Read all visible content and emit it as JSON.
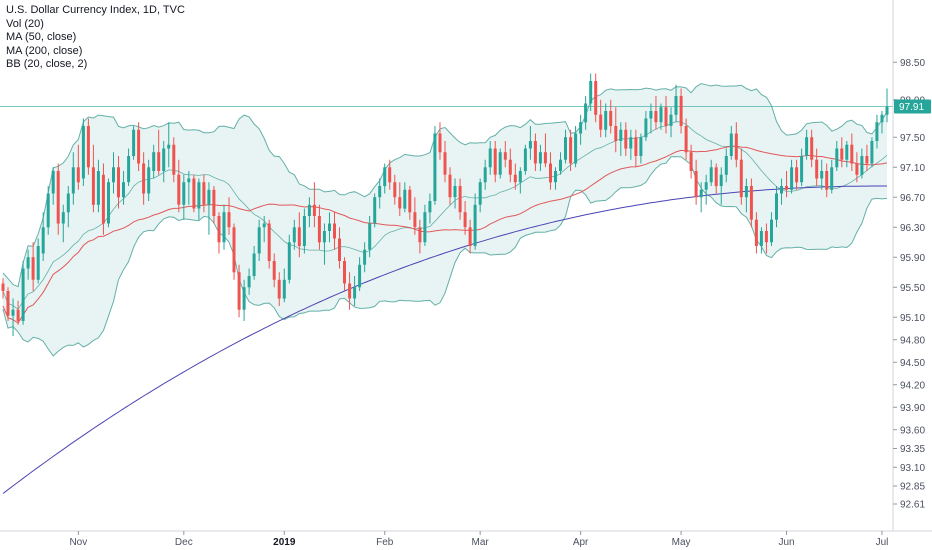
{
  "legend": {
    "title": "U.S. Dollar Currency Index, 1D, TVC",
    "vol": "Vol (20)",
    "ma50": "MA (50, close)",
    "ma200": "MA (200, close)",
    "bb": "BB (20, close, 2)"
  },
  "colors": {
    "up": "#26a69a",
    "down": "#ef5350",
    "bb": "#63b0a8",
    "bb_fill": "#e6f3f2",
    "ma50": "#e15759",
    "ma200": "#4a44b5",
    "price_line": "#26a69a"
  },
  "chart_data": {
    "type": "candlestick",
    "title": "U.S. Dollar Currency Index, 1D, TVC",
    "ylim": [
      92.45,
      98.85
    ],
    "y_ticks": [
      "98.50",
      "98.00",
      "97.50",
      "97.10",
      "96.70",
      "96.30",
      "95.90",
      "95.50",
      "95.10",
      "94.80",
      "94.50",
      "94.20",
      "93.90",
      "93.60",
      "93.35",
      "93.10",
      "92.85",
      "92.61"
    ],
    "x_ticks": [
      {
        "label": "Nov",
        "bold": false,
        "index": 15
      },
      {
        "label": "Dec",
        "bold": false,
        "index": 36
      },
      {
        "label": "2019",
        "bold": true,
        "index": 56
      },
      {
        "label": "Feb",
        "bold": false,
        "index": 76
      },
      {
        "label": "Mar",
        "bold": false,
        "index": 95
      },
      {
        "label": "Apr",
        "bold": false,
        "index": 115
      },
      {
        "label": "May",
        "bold": false,
        "index": 135
      },
      {
        "label": "Jun",
        "bold": false,
        "index": 156
      },
      {
        "label": "Jul",
        "bold": false,
        "index": 175
      }
    ],
    "last_price": 97.91,
    "last_price_label": "97.91",
    "candles": [
      [
        95.55,
        95.62,
        95.35,
        95.45
      ],
      [
        95.45,
        95.5,
        95.05,
        95.12
      ],
      [
        95.12,
        95.35,
        94.85,
        95.2
      ],
      [
        95.2,
        95.32,
        95.0,
        95.05
      ],
      [
        95.05,
        95.85,
        95.0,
        95.75
      ],
      [
        95.75,
        96.0,
        95.6,
        95.9
      ],
      [
        95.9,
        96.1,
        95.45,
        95.6
      ],
      [
        95.6,
        96.15,
        95.55,
        96.05
      ],
      [
        95.95,
        96.5,
        95.85,
        96.3
      ],
      [
        96.3,
        96.85,
        96.2,
        96.75
      ],
      [
        96.75,
        97.1,
        96.6,
        97.05
      ],
      [
        97.05,
        97.15,
        96.2,
        96.35
      ],
      [
        96.35,
        96.6,
        96.1,
        96.5
      ],
      [
        96.5,
        96.85,
        96.3,
        96.75
      ],
      [
        96.75,
        97.3,
        96.6,
        97.1
      ],
      [
        97.1,
        97.4,
        96.8,
        96.9
      ],
      [
        96.95,
        97.75,
        96.85,
        97.65
      ],
      [
        97.65,
        97.75,
        97.0,
        97.1
      ],
      [
        97.1,
        97.4,
        96.5,
        96.6
      ],
      [
        96.6,
        97.2,
        96.5,
        97.05
      ],
      [
        97.0,
        97.15,
        96.2,
        96.35
      ],
      [
        96.35,
        96.95,
        96.3,
        96.9
      ],
      [
        96.9,
        97.3,
        96.75,
        97.1
      ],
      [
        97.1,
        97.25,
        96.55,
        96.7
      ],
      [
        96.7,
        97.05,
        96.6,
        96.9
      ],
      [
        96.9,
        97.35,
        96.85,
        97.25
      ],
      [
        97.25,
        97.65,
        97.2,
        97.6
      ],
      [
        97.6,
        97.7,
        97.05,
        97.15
      ],
      [
        97.15,
        97.3,
        96.6,
        96.75
      ],
      [
        96.75,
        97.2,
        96.65,
        97.1
      ],
      [
        97.05,
        97.4,
        96.95,
        97.3
      ],
      [
        97.3,
        97.6,
        97.0,
        97.05
      ],
      [
        97.05,
        97.45,
        96.9,
        97.35
      ],
      [
        97.35,
        97.7,
        97.1,
        97.4
      ],
      [
        97.4,
        97.5,
        96.9,
        97.0
      ],
      [
        97.0,
        97.2,
        96.5,
        96.6
      ],
      [
        96.6,
        97.0,
        96.4,
        96.9
      ],
      [
        96.9,
        97.05,
        96.6,
        96.95
      ],
      [
        96.95,
        97.0,
        96.5,
        96.55
      ],
      [
        96.55,
        96.95,
        96.4,
        96.9
      ],
      [
        96.9,
        97.0,
        96.5,
        96.6
      ],
      [
        96.6,
        96.9,
        96.2,
        96.8
      ],
      [
        96.8,
        96.85,
        96.35,
        96.45
      ],
      [
        96.45,
        96.5,
        95.95,
        96.1
      ],
      [
        96.1,
        96.6,
        96.0,
        96.5
      ],
      [
        96.5,
        96.7,
        96.2,
        96.3
      ],
      [
        96.3,
        96.35,
        95.6,
        95.7
      ],
      [
        95.7,
        95.8,
        95.1,
        95.2
      ],
      [
        95.2,
        95.6,
        95.05,
        95.5
      ],
      [
        95.5,
        95.75,
        95.4,
        95.65
      ],
      [
        95.65,
        96.05,
        95.6,
        95.95
      ],
      [
        95.95,
        96.4,
        95.85,
        96.3
      ],
      [
        96.3,
        96.45,
        96.1,
        96.35
      ],
      [
        96.35,
        96.4,
        95.75,
        95.85
      ],
      [
        95.85,
        95.95,
        95.5,
        95.6
      ],
      [
        95.6,
        95.7,
        95.25,
        95.35
      ],
      [
        95.35,
        95.75,
        95.3,
        95.6
      ],
      [
        95.6,
        96.2,
        95.55,
        96.1
      ],
      [
        96.1,
        96.4,
        96.0,
        96.3
      ],
      [
        96.3,
        96.5,
        95.9,
        96.05
      ],
      [
        96.05,
        96.55,
        95.95,
        96.45
      ],
      [
        96.45,
        96.7,
        96.3,
        96.6
      ],
      [
        96.6,
        96.9,
        96.3,
        96.45
      ],
      [
        96.45,
        96.6,
        96.0,
        96.1
      ],
      [
        96.1,
        96.35,
        95.8,
        96.25
      ],
      [
        96.25,
        96.5,
        96.1,
        96.35
      ],
      [
        96.35,
        96.5,
        96.0,
        96.15
      ],
      [
        96.15,
        96.3,
        95.75,
        95.85
      ],
      [
        95.85,
        95.9,
        95.45,
        95.55
      ],
      [
        95.55,
        95.7,
        95.2,
        95.35
      ],
      [
        95.35,
        95.65,
        95.25,
        95.5
      ],
      [
        95.5,
        95.9,
        95.45,
        95.8
      ],
      [
        95.8,
        96.1,
        95.7,
        96.0
      ],
      [
        96.0,
        96.45,
        95.9,
        96.35
      ],
      [
        96.35,
        96.75,
        96.3,
        96.7
      ],
      [
        96.7,
        96.95,
        96.55,
        96.85
      ],
      [
        96.85,
        97.15,
        96.75,
        97.1
      ],
      [
        97.1,
        97.2,
        96.8,
        96.9
      ],
      [
        96.9,
        97.0,
        96.6,
        96.7
      ],
      [
        96.7,
        96.9,
        96.45,
        96.55
      ],
      [
        96.55,
        96.9,
        96.5,
        96.8
      ],
      [
        96.8,
        96.85,
        96.4,
        96.5
      ],
      [
        96.5,
        96.7,
        96.2,
        96.3
      ],
      [
        96.3,
        96.4,
        95.95,
        96.1
      ],
      [
        96.1,
        96.6,
        96.05,
        96.5
      ],
      [
        96.5,
        96.75,
        96.35,
        96.65
      ],
      [
        96.65,
        97.65,
        96.6,
        97.55
      ],
      [
        97.55,
        97.7,
        97.2,
        97.3
      ],
      [
        97.3,
        97.45,
        96.9,
        97.0
      ],
      [
        97.0,
        97.1,
        96.6,
        96.7
      ],
      [
        96.7,
        96.95,
        96.55,
        96.85
      ],
      [
        96.85,
        96.95,
        96.4,
        96.5
      ],
      [
        96.5,
        96.65,
        96.2,
        96.3
      ],
      [
        96.3,
        96.4,
        95.95,
        96.05
      ],
      [
        96.05,
        96.75,
        96.0,
        96.6
      ],
      [
        96.6,
        96.95,
        96.5,
        96.9
      ],
      [
        96.9,
        97.2,
        96.8,
        97.1
      ],
      [
        97.1,
        97.45,
        97.0,
        97.35
      ],
      [
        97.35,
        97.45,
        96.9,
        97.0
      ],
      [
        97.0,
        97.35,
        96.95,
        97.3
      ],
      [
        97.3,
        97.45,
        97.1,
        97.2
      ],
      [
        97.2,
        97.35,
        96.9,
        97.0
      ],
      [
        97.0,
        97.15,
        96.8,
        96.9
      ],
      [
        96.9,
        97.1,
        96.75,
        97.05
      ],
      [
        97.05,
        97.4,
        97.0,
        97.35
      ],
      [
        97.35,
        97.65,
        97.2,
        97.45
      ],
      [
        97.45,
        97.55,
        97.05,
        97.15
      ],
      [
        97.15,
        97.4,
        97.05,
        97.3
      ],
      [
        97.3,
        97.55,
        97.1,
        97.15
      ],
      [
        97.15,
        97.3,
        96.8,
        96.9
      ],
      [
        96.9,
        97.1,
        96.8,
        97.05
      ],
      [
        97.05,
        97.3,
        97.0,
        97.2
      ],
      [
        97.2,
        97.6,
        97.15,
        97.5
      ],
      [
        97.5,
        97.6,
        97.05,
        97.15
      ],
      [
        97.15,
        97.65,
        97.1,
        97.55
      ],
      [
        97.55,
        97.8,
        97.4,
        97.7
      ],
      [
        97.7,
        98.05,
        97.6,
        97.95
      ],
      [
        97.95,
        98.35,
        97.85,
        98.25
      ],
      [
        98.25,
        98.35,
        97.7,
        97.8
      ],
      [
        97.8,
        98.0,
        97.5,
        97.6
      ],
      [
        97.6,
        97.95,
        97.5,
        97.85
      ],
      [
        97.85,
        98.0,
        97.55,
        97.65
      ],
      [
        97.65,
        97.9,
        97.3,
        97.45
      ],
      [
        97.45,
        97.7,
        97.25,
        97.6
      ],
      [
        97.6,
        97.7,
        97.25,
        97.35
      ],
      [
        97.35,
        97.6,
        97.2,
        97.5
      ],
      [
        97.5,
        97.6,
        97.1,
        97.25
      ],
      [
        97.25,
        97.55,
        97.15,
        97.5
      ],
      [
        97.5,
        97.85,
        97.45,
        97.75
      ],
      [
        97.75,
        97.95,
        97.55,
        97.85
      ],
      [
        97.85,
        98.05,
        97.6,
        97.7
      ],
      [
        97.7,
        97.95,
        97.6,
        97.9
      ],
      [
        97.9,
        98.05,
        97.55,
        97.65
      ],
      [
        97.65,
        97.9,
        97.5,
        97.8
      ],
      [
        97.8,
        98.2,
        97.7,
        98.05
      ],
      [
        98.05,
        98.15,
        97.55,
        97.65
      ],
      [
        97.65,
        97.75,
        97.2,
        97.3
      ],
      [
        97.3,
        97.4,
        96.95,
        97.05
      ],
      [
        97.05,
        97.2,
        96.6,
        96.7
      ],
      [
        96.7,
        96.9,
        96.5,
        96.8
      ],
      [
        96.8,
        97.0,
        96.6,
        96.9
      ],
      [
        96.9,
        97.2,
        96.85,
        97.1
      ],
      [
        97.1,
        97.15,
        96.75,
        96.85
      ],
      [
        96.85,
        97.1,
        96.6,
        97.0
      ],
      [
        97.0,
        97.35,
        96.9,
        97.25
      ],
      [
        97.25,
        97.65,
        97.2,
        97.55
      ],
      [
        97.55,
        97.7,
        97.1,
        97.2
      ],
      [
        97.2,
        97.35,
        96.6,
        96.7
      ],
      [
        96.7,
        96.95,
        96.5,
        96.85
      ],
      [
        96.85,
        96.95,
        96.3,
        96.4
      ],
      [
        96.4,
        96.5,
        95.95,
        96.05
      ],
      [
        96.05,
        96.3,
        95.95,
        96.25
      ],
      [
        96.25,
        96.35,
        95.95,
        96.1
      ],
      [
        96.1,
        96.5,
        96.05,
        96.4
      ],
      [
        96.4,
        96.85,
        96.3,
        96.75
      ],
      [
        96.75,
        96.95,
        96.6,
        96.85
      ],
      [
        96.85,
        97.05,
        96.7,
        96.8
      ],
      [
        96.8,
        97.2,
        96.75,
        97.1
      ],
      [
        97.1,
        97.2,
        96.8,
        96.9
      ],
      [
        96.9,
        97.35,
        96.85,
        97.25
      ],
      [
        97.25,
        97.6,
        97.2,
        97.5
      ],
      [
        97.5,
        97.6,
        97.1,
        97.2
      ],
      [
        97.2,
        97.35,
        96.85,
        96.95
      ],
      [
        96.95,
        97.2,
        96.8,
        97.05
      ],
      [
        97.05,
        97.15,
        96.7,
        96.8
      ],
      [
        96.8,
        97.2,
        96.75,
        97.1
      ],
      [
        97.1,
        97.45,
        97.05,
        97.35
      ],
      [
        97.35,
        97.5,
        97.1,
        97.2
      ],
      [
        97.2,
        97.45,
        97.1,
        97.4
      ],
      [
        97.4,
        97.55,
        97.05,
        97.15
      ],
      [
        97.15,
        97.3,
        96.9,
        97.0
      ],
      [
        97.0,
        97.35,
        96.95,
        97.25
      ],
      [
        97.25,
        97.4,
        97.05,
        97.15
      ],
      [
        97.15,
        97.5,
        97.1,
        97.45
      ],
      [
        97.45,
        97.8,
        97.35,
        97.7
      ],
      [
        97.7,
        97.85,
        97.55,
        97.8
      ],
      [
        97.8,
        98.15,
        97.7,
        97.91
      ]
    ]
  }
}
